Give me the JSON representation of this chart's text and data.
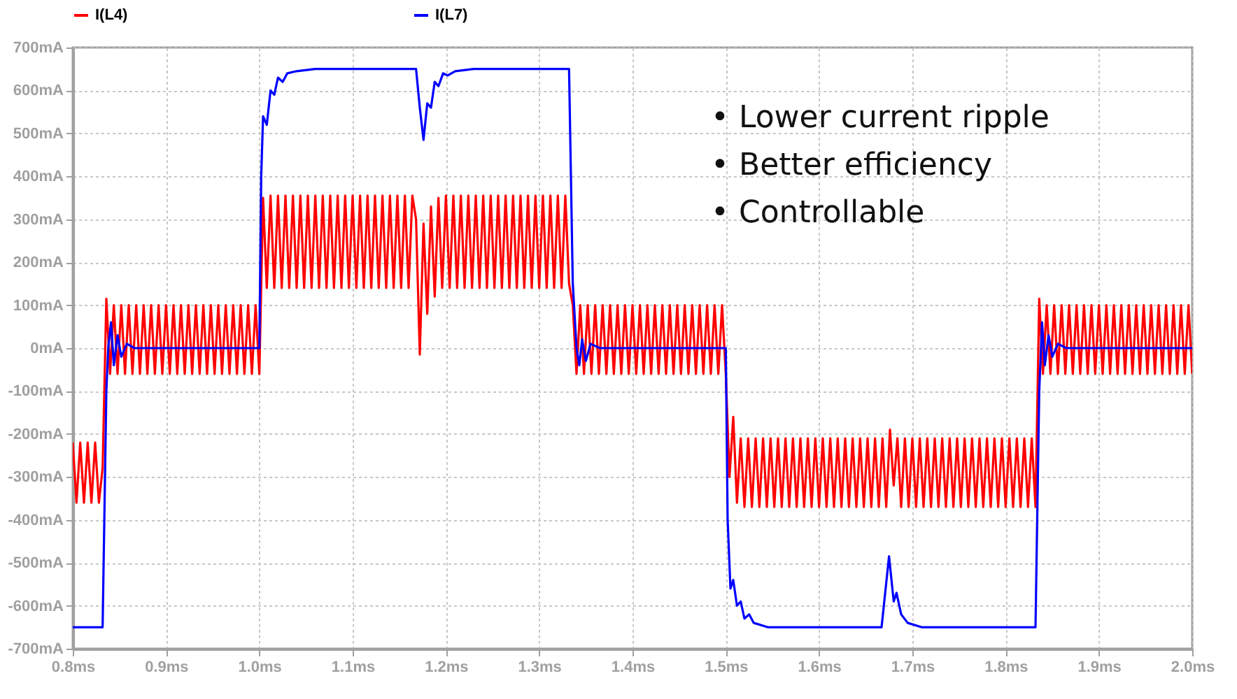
{
  "chart_data": {
    "type": "line",
    "xlim": [
      0.8,
      2.0
    ],
    "xticks": [
      {
        "value": 0.8,
        "label": "0.8ms"
      },
      {
        "value": 0.9,
        "label": "0.9ms"
      },
      {
        "value": 1.0,
        "label": "1.0ms"
      },
      {
        "value": 1.1,
        "label": "1.1ms"
      },
      {
        "value": 1.2,
        "label": "1.2ms"
      },
      {
        "value": 1.3,
        "label": "1.3ms"
      },
      {
        "value": 1.4,
        "label": "1.4ms"
      },
      {
        "value": 1.5,
        "label": "1.5ms"
      },
      {
        "value": 1.6,
        "label": "1.6ms"
      },
      {
        "value": 1.7,
        "label": "1.7ms"
      },
      {
        "value": 1.8,
        "label": "1.8ms"
      },
      {
        "value": 1.9,
        "label": "1.9ms"
      },
      {
        "value": 2.0,
        "label": "2.0ms"
      }
    ],
    "ylim": [
      -700,
      700
    ],
    "yticks": [
      {
        "value": -700,
        "label": "-700mA"
      },
      {
        "value": -600,
        "label": "-600mA"
      },
      {
        "value": -500,
        "label": "-500mA"
      },
      {
        "value": -400,
        "label": "-400mA"
      },
      {
        "value": -300,
        "label": "-300mA"
      },
      {
        "value": -200,
        "label": "-200mA"
      },
      {
        "value": -100,
        "label": "-100mA"
      },
      {
        "value": 0,
        "label": "0mA"
      },
      {
        "value": 100,
        "label": "100mA"
      },
      {
        "value": 200,
        "label": "200mA"
      },
      {
        "value": 300,
        "label": "300mA"
      },
      {
        "value": 400,
        "label": "400mA"
      },
      {
        "value": 500,
        "label": "500mA"
      },
      {
        "value": 600,
        "label": "600mA"
      },
      {
        "value": 700,
        "label": "700mA"
      }
    ],
    "grid": true,
    "legend": "top",
    "annotations": [
      "• Lower current ripple",
      "• Better efficiency",
      "• Controllable"
    ],
    "series": [
      {
        "name": "I(L4)",
        "color": "#ff0000",
        "x": [
          0.8,
          0.804,
          0.808,
          0.812,
          0.816,
          0.82,
          0.824,
          0.828,
          0.832,
          0.836,
          0.84,
          0.844,
          0.848,
          0.852,
          0.856,
          0.86,
          0.864,
          0.868,
          0.872,
          0.876,
          0.88,
          0.884,
          0.888,
          0.892,
          0.896,
          0.9,
          0.904,
          0.908,
          0.912,
          0.916,
          0.92,
          0.924,
          0.928,
          0.932,
          0.936,
          0.94,
          0.944,
          0.948,
          0.952,
          0.956,
          0.96,
          0.964,
          0.968,
          0.972,
          0.976,
          0.98,
          0.984,
          0.988,
          0.992,
          0.996,
          1.0,
          1.004,
          1.008,
          1.012,
          1.016,
          1.02,
          1.024,
          1.028,
          1.032,
          1.036,
          1.04,
          1.044,
          1.048,
          1.052,
          1.056,
          1.06,
          1.064,
          1.068,
          1.072,
          1.076,
          1.08,
          1.084,
          1.088,
          1.092,
          1.096,
          1.1,
          1.104,
          1.108,
          1.112,
          1.116,
          1.12,
          1.124,
          1.128,
          1.132,
          1.136,
          1.14,
          1.144,
          1.148,
          1.152,
          1.156,
          1.16,
          1.164,
          1.168,
          1.172,
          1.176,
          1.18,
          1.184,
          1.188,
          1.192,
          1.196,
          1.2,
          1.204,
          1.208,
          1.212,
          1.216,
          1.22,
          1.224,
          1.228,
          1.232,
          1.236,
          1.24,
          1.244,
          1.248,
          1.252,
          1.256,
          1.26,
          1.264,
          1.268,
          1.272,
          1.276,
          1.28,
          1.284,
          1.288,
          1.292,
          1.296,
          1.3,
          1.304,
          1.308,
          1.312,
          1.316,
          1.32,
          1.324,
          1.328,
          1.332,
          1.336,
          1.34,
          1.344,
          1.348,
          1.352,
          1.356,
          1.36,
          1.364,
          1.368,
          1.372,
          1.376,
          1.38,
          1.384,
          1.388,
          1.392,
          1.396,
          1.4,
          1.404,
          1.408,
          1.412,
          1.416,
          1.42,
          1.424,
          1.428,
          1.432,
          1.436,
          1.44,
          1.444,
          1.448,
          1.452,
          1.456,
          1.46,
          1.464,
          1.468,
          1.472,
          1.476,
          1.48,
          1.484,
          1.488,
          1.492,
          1.496,
          1.5,
          1.504,
          1.508,
          1.512,
          1.516,
          1.52,
          1.524,
          1.528,
          1.532,
          1.536,
          1.54,
          1.544,
          1.548,
          1.552,
          1.556,
          1.56,
          1.564,
          1.568,
          1.572,
          1.576,
          1.58,
          1.584,
          1.588,
          1.592,
          1.596,
          1.6,
          1.604,
          1.608,
          1.612,
          1.616,
          1.62,
          1.624,
          1.628,
          1.632,
          1.636,
          1.64,
          1.644,
          1.648,
          1.652,
          1.656,
          1.66,
          1.664,
          1.668,
          1.672,
          1.676,
          1.68,
          1.684,
          1.688,
          1.692,
          1.696,
          1.7,
          1.704,
          1.708,
          1.712,
          1.716,
          1.72,
          1.724,
          1.728,
          1.732,
          1.736,
          1.74,
          1.744,
          1.748,
          1.752,
          1.756,
          1.76,
          1.764,
          1.768,
          1.772,
          1.776,
          1.78,
          1.784,
          1.788,
          1.792,
          1.796,
          1.8,
          1.804,
          1.808,
          1.812,
          1.816,
          1.82,
          1.824,
          1.828,
          1.832,
          1.836,
          1.84,
          1.844,
          1.848,
          1.852,
          1.856,
          1.86,
          1.864,
          1.868,
          1.872,
          1.876,
          1.88,
          1.884,
          1.888,
          1.892,
          1.896,
          1.9,
          1.904,
          1.908,
          1.912,
          1.916,
          1.92,
          1.924,
          1.928,
          1.932,
          1.936,
          1.94,
          1.944,
          1.948,
          1.952,
          1.956,
          1.96,
          1.964,
          1.968,
          1.972,
          1.976,
          1.98,
          1.984,
          1.988,
          1.992,
          1.996,
          2.0
        ],
        "values": [
          -220,
          -360,
          -220,
          -360,
          -220,
          -360,
          -220,
          -360,
          -280,
          115,
          -60,
          100,
          -60,
          100,
          -60,
          100,
          -60,
          100,
          -60,
          100,
          -60,
          100,
          -60,
          100,
          -60,
          100,
          -60,
          100,
          -60,
          100,
          -60,
          100,
          -60,
          100,
          -60,
          100,
          -60,
          100,
          -60,
          100,
          -60,
          100,
          -60,
          100,
          -60,
          100,
          -60,
          100,
          -60,
          100,
          -60,
          350,
          140,
          355,
          140,
          355,
          140,
          355,
          140,
          355,
          140,
          355,
          140,
          355,
          140,
          355,
          140,
          355,
          140,
          355,
          140,
          355,
          140,
          355,
          140,
          355,
          140,
          355,
          140,
          355,
          140,
          355,
          140,
          355,
          140,
          355,
          140,
          355,
          140,
          355,
          140,
          355,
          300,
          -15,
          290,
          80,
          330,
          120,
          350,
          140,
          355,
          140,
          355,
          140,
          355,
          140,
          355,
          140,
          355,
          140,
          355,
          140,
          355,
          140,
          355,
          140,
          355,
          140,
          355,
          140,
          355,
          140,
          355,
          140,
          355,
          140,
          355,
          140,
          355,
          140,
          355,
          140,
          355,
          150,
          100,
          -60,
          100,
          -60,
          100,
          -60,
          100,
          -60,
          100,
          -60,
          100,
          -60,
          100,
          -60,
          100,
          -60,
          100,
          -60,
          100,
          -60,
          100,
          -60,
          100,
          -60,
          100,
          -60,
          100,
          -60,
          100,
          -60,
          100,
          -60,
          100,
          -60,
          100,
          -60,
          100,
          -60,
          100,
          -60,
          100,
          -60,
          -300,
          -160,
          -360,
          -210,
          -370,
          -210,
          -370,
          -210,
          -370,
          -210,
          -370,
          -210,
          -370,
          -210,
          -370,
          -210,
          -370,
          -210,
          -370,
          -210,
          -370,
          -210,
          -370,
          -210,
          -370,
          -210,
          -370,
          -210,
          -370,
          -210,
          -370,
          -210,
          -370,
          -210,
          -370,
          -210,
          -370,
          -210,
          -370,
          -210,
          -370,
          -210,
          -370,
          -190,
          -320,
          -210,
          -370,
          -210,
          -370,
          -210,
          -370,
          -210,
          -370,
          -210,
          -370,
          -210,
          -370,
          -210,
          -370,
          -210,
          -370,
          -210,
          -370,
          -210,
          -370,
          -210,
          -370,
          -210,
          -370,
          -210,
          -370,
          -210,
          -370,
          -210,
          -370,
          -210,
          -370,
          -210,
          -370,
          -210,
          -370,
          -210,
          -370,
          115,
          -60,
          100,
          -60,
          100,
          -60,
          100,
          -60,
          100,
          -60,
          100,
          -60,
          100,
          -60,
          100,
          -60,
          100,
          -60,
          100,
          -60,
          100,
          -60,
          100,
          -60,
          100,
          -60,
          100,
          -60,
          100,
          -60,
          100,
          -60,
          100,
          -60,
          100,
          -60,
          100,
          -60,
          100,
          -60,
          100,
          -60
        ]
      },
      {
        "name": "I(L7)",
        "color": "#0000ff",
        "x": [
          0.8,
          0.832,
          0.836,
          0.838,
          0.841,
          0.844,
          0.848,
          0.852,
          0.858,
          0.866,
          1.0,
          1.002,
          1.004,
          1.008,
          1.012,
          1.016,
          1.02,
          1.025,
          1.03,
          1.04,
          1.06,
          1.168,
          1.172,
          1.176,
          1.18,
          1.184,
          1.188,
          1.192,
          1.197,
          1.202,
          1.21,
          1.23,
          1.332,
          1.336,
          1.34,
          1.343,
          1.346,
          1.35,
          1.355,
          1.365,
          1.5,
          1.502,
          1.505,
          1.508,
          1.512,
          1.516,
          1.52,
          1.525,
          1.53,
          1.545,
          1.667,
          1.675,
          1.68,
          1.683,
          1.688,
          1.695,
          1.71,
          1.832,
          1.836,
          1.839,
          1.842,
          1.846,
          1.85,
          1.856,
          1.865,
          2.0
        ],
        "values": [
          -650,
          -650,
          -100,
          0,
          60,
          -40,
          30,
          -20,
          10,
          0,
          0,
          400,
          540,
          520,
          600,
          590,
          630,
          620,
          640,
          645,
          650,
          650,
          560,
          485,
          570,
          560,
          620,
          610,
          640,
          635,
          645,
          650,
          650,
          150,
          0,
          -40,
          20,
          -30,
          10,
          0,
          0,
          -400,
          -560,
          -540,
          -600,
          -590,
          -630,
          -620,
          -640,
          -650,
          -650,
          -485,
          -590,
          -570,
          -620,
          -640,
          -650,
          -650,
          -100,
          60,
          -40,
          30,
          -20,
          10,
          0,
          0
        ]
      }
    ]
  }
}
